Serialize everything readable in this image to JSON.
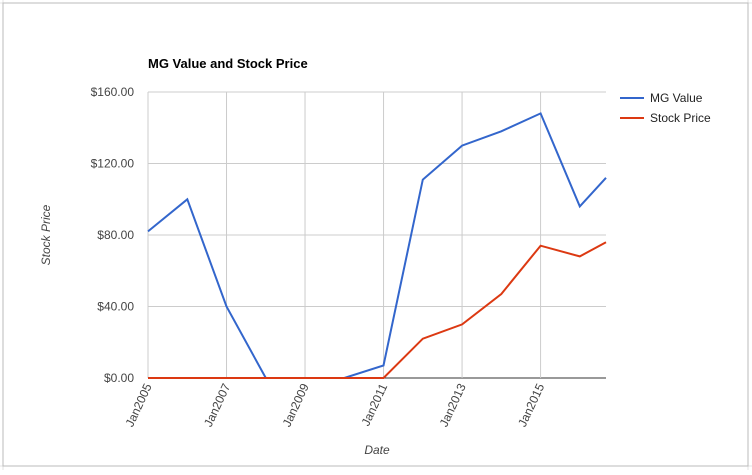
{
  "chart_data": {
    "type": "line",
    "title": "MG Value and Stock Price",
    "x_label": "Date",
    "y_label": "Stock Price",
    "x": [
      "2005-01",
      "2006-01",
      "2007-01",
      "2008-01",
      "2009-01",
      "2010-01",
      "2011-01",
      "2012-01",
      "2013-01",
      "2014-01",
      "2015-01",
      "2016-01",
      "2016-09"
    ],
    "series": [
      {
        "name": "MG Value",
        "color": "#3366cc",
        "values": [
          82,
          100,
          40,
          0,
          0,
          0,
          7,
          111,
          130,
          138,
          148,
          96,
          112
        ]
      },
      {
        "name": "Stock Price",
        "color": "#dc3912",
        "values": [
          0,
          0,
          0,
          0,
          0,
          0,
          0,
          22,
          30,
          47,
          74,
          68,
          76
        ]
      }
    ],
    "xlim": [
      "2005-01",
      "2016-09"
    ],
    "xticks": [
      {
        "value": "2005-01",
        "label": "Jan2005"
      },
      {
        "value": "2007-01",
        "label": "Jan2007"
      },
      {
        "value": "2009-01",
        "label": "Jan2009"
      },
      {
        "value": "2011-01",
        "label": "Jan2011"
      },
      {
        "value": "2013-01",
        "label": "Jan2013"
      },
      {
        "value": "2015-01",
        "label": "Jan2015"
      }
    ],
    "ylim": [
      0,
      160
    ],
    "yticks": [
      {
        "value": 0,
        "label": "$0.00"
      },
      {
        "value": 40,
        "label": "$40.00"
      },
      {
        "value": 80,
        "label": "$80.00"
      },
      {
        "value": 120,
        "label": "$120.00"
      },
      {
        "value": 160,
        "label": "$160.00"
      }
    ],
    "grid": true,
    "legend": "right"
  }
}
